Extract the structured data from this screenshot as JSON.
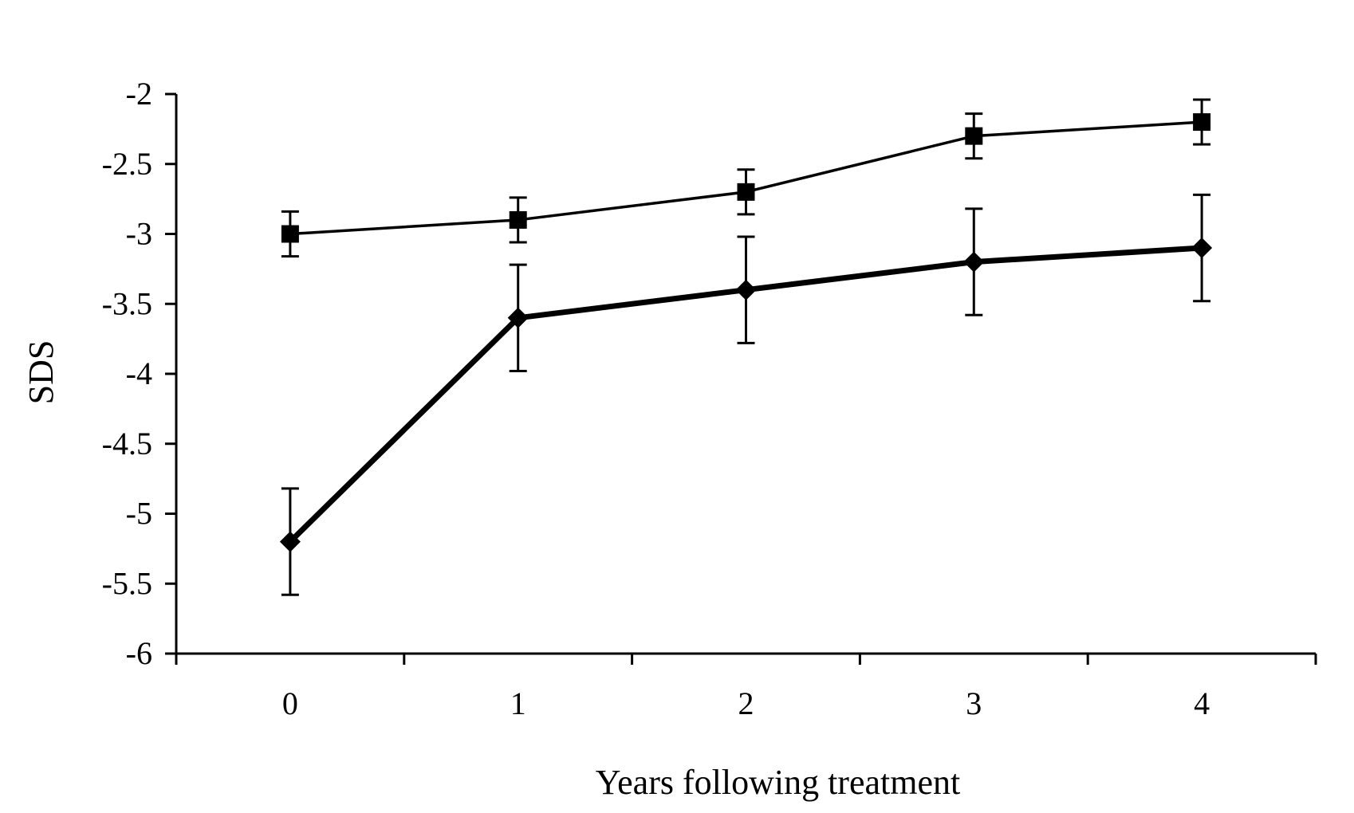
{
  "chart_data": {
    "type": "line",
    "title": "",
    "xlabel": "Years following treatment",
    "ylabel": "SDS",
    "x": [
      0,
      1,
      2,
      3,
      4
    ],
    "x_tick_labels": [
      "0",
      "1",
      "2",
      "3",
      "4"
    ],
    "y_ticks": [
      -2,
      -2.5,
      -3,
      -3.5,
      -4,
      -4.5,
      -5,
      -5.5,
      -6
    ],
    "y_tick_labels": [
      "-2",
      "-2.5",
      "-3",
      "-3.5",
      "-4",
      "-4.5",
      "-5",
      "-5.5",
      "-6"
    ],
    "xlim": [
      -0.5,
      4.5
    ],
    "ylim": [
      -6,
      -2
    ],
    "grid": false,
    "legend": "none",
    "series": [
      {
        "marker": "square",
        "line_style": "thin",
        "values": [
          -3.0,
          -2.9,
          -2.7,
          -2.3,
          -2.2
        ],
        "error": [
          0.16,
          0.16,
          0.16,
          0.16,
          0.16
        ],
        "color": "#000000"
      },
      {
        "marker": "diamond",
        "line_style": "thick",
        "values": [
          -5.2,
          -3.6,
          -3.4,
          -3.2,
          -3.1
        ],
        "error": [
          0.38,
          0.38,
          0.38,
          0.38,
          0.38
        ],
        "color": "#000000"
      }
    ]
  }
}
